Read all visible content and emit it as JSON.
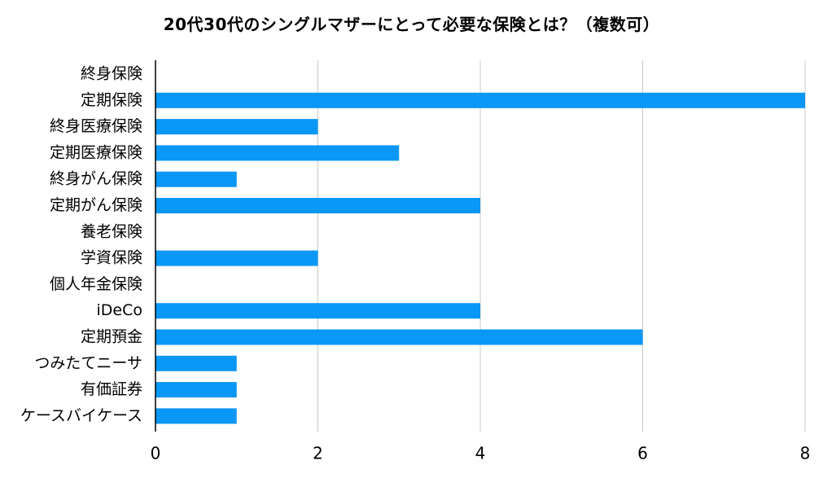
{
  "chart_data": {
    "type": "bar",
    "orientation": "horizontal",
    "title": "20代30代のシングルマザーにとって必要な保険とは？（複数可）",
    "xlabel": "",
    "ylabel": "",
    "categories": [
      "終身保険",
      "定期保険",
      "終身医療保険",
      "定期医療保険",
      "終身がん保険",
      "定期がん保険",
      "養老保険",
      "学資保険",
      "個人年金保険",
      "iDeCo",
      "定期預金",
      "つみたてニーサ",
      "有価証券",
      "ケースバイケース"
    ],
    "values": [
      0,
      8,
      2,
      3,
      1,
      4,
      0,
      2,
      0,
      4,
      6,
      1,
      1,
      1
    ],
    "xlim": [
      0,
      8
    ],
    "xticks": [
      "0",
      "2",
      "4",
      "6",
      "8"
    ],
    "grid": true,
    "legend": "none",
    "colors": {
      "bar": "#0a97f5",
      "grid": "#c8c8c8",
      "axis": "#000000"
    }
  }
}
